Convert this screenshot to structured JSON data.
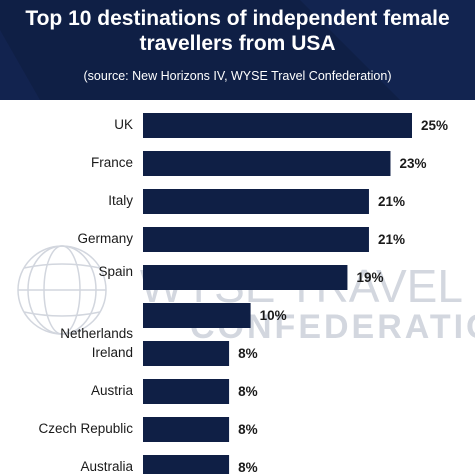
{
  "header": {
    "title_line1": "Top 10 destinations of independent female",
    "title_line2": "travellers from USA",
    "source": "(source: New Horizons IV, WYSE Travel Confederation)"
  },
  "watermark": {
    "line1": "WYSE TRAVEL",
    "line2": "CONFEDERATION",
    "icon": "globe-icon"
  },
  "colors": {
    "header_bg": "#0f1f45",
    "bar": "#0f1f45",
    "label": "#1a1a1a",
    "watermark": "#c9ced8"
  },
  "chart_data": {
    "type": "bar",
    "orientation": "horizontal",
    "title": "Top 10 destinations of independent female travellers from USA",
    "subtitle": "(source: New Horizons IV, WYSE Travel Confederation)",
    "categories": [
      "UK",
      "France",
      "Italy",
      "Germany",
      "Spain",
      "Netherlands",
      "Ireland",
      "Austria",
      "Czech Republic",
      "Australia"
    ],
    "values": [
      25,
      23,
      21,
      21,
      19,
      10,
      8,
      8,
      8,
      8
    ],
    "value_labels": [
      "25%",
      "23%",
      "21%",
      "21%",
      "19%",
      "10%",
      "8%",
      "8%",
      "8%",
      "8%"
    ],
    "unit": "%",
    "xlim": [
      0,
      25
    ],
    "grid": false,
    "legend": "none"
  }
}
